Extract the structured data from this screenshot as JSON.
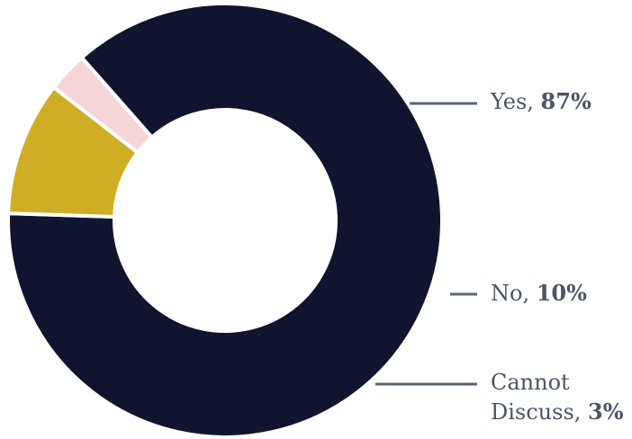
{
  "chart_data": {
    "type": "pie",
    "style": "donut",
    "categories": [
      "Yes",
      "No",
      "Cannot Discuss"
    ],
    "values": [
      87,
      10,
      3
    ],
    "value_labels": [
      "87%",
      "10%",
      "3%"
    ],
    "colors": [
      "#10142e",
      "#cfae25",
      "#f5d6d8"
    ],
    "label_color": "#4a5568",
    "leader_color": "#5a6478",
    "label_lines": [
      [
        "Yes, "
      ],
      [
        "No, "
      ],
      [
        "Cannot",
        "Discuss, "
      ]
    ]
  }
}
